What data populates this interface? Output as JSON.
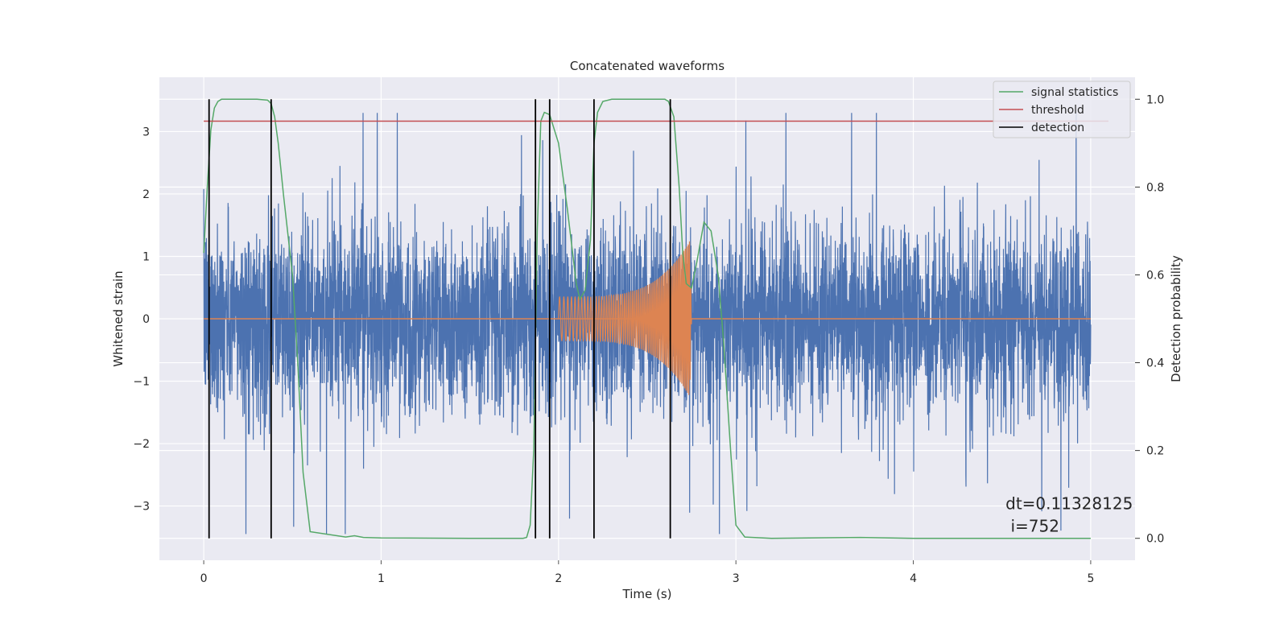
{
  "chart_data": {
    "type": "line",
    "title": "Concatenated waveforms",
    "xlabel": "Time (s)",
    "ylabel": "Whitened strain",
    "y2label": "Detection probability",
    "xlim": [
      -0.25,
      5.25
    ],
    "ylim": [
      -3.87,
      3.87
    ],
    "y2lim": [
      -0.05,
      1.05
    ],
    "xticks": [
      0,
      1,
      2,
      3,
      4,
      5
    ],
    "xtick_labels": [
      "0",
      "1",
      "2",
      "3",
      "4",
      "5"
    ],
    "yticks": [
      -3,
      -2,
      -1,
      0,
      1,
      2,
      3
    ],
    "ytick_labels": [
      "−3",
      "−2",
      "−1",
      "0",
      "1",
      "2",
      "3"
    ],
    "y2ticks": [
      0.0,
      0.2,
      0.4,
      0.6,
      0.8,
      1.0
    ],
    "y2tick_labels": [
      "0.0",
      "0.2",
      "0.4",
      "0.6",
      "0.8",
      "1.0"
    ],
    "grid": true,
    "legend_position": "top-right",
    "legend": [
      "signal statistics",
      "threshold",
      "detection"
    ],
    "colors": {
      "noise": "#4c72b0",
      "injection": "#dd8452",
      "signal_statistics": "#55a868",
      "threshold": "#c44e52",
      "detection": "#000000",
      "plot_bg": "#eaeaf2",
      "grid": "#ffffff"
    },
    "series": [
      {
        "name": "whitened strain",
        "axis": "left",
        "description": "noisy strain, ~N(0,0.75) with spikes up to about ±3.3",
        "t_range": [
          0,
          5
        ]
      },
      {
        "name": "injected waveform",
        "axis": "left",
        "t_range": [
          2.0,
          2.75
        ],
        "envelope_start": 0.35,
        "envelope_peak": 1.25,
        "peak_time": 2.74
      },
      {
        "name": "signal statistics",
        "axis": "right",
        "x": [
          0.0,
          0.02,
          0.04,
          0.06,
          0.08,
          0.1,
          0.2,
          0.3,
          0.36,
          0.38,
          0.4,
          0.42,
          0.45,
          0.5,
          0.53,
          0.56,
          0.6,
          0.8,
          0.85,
          0.9,
          1.0,
          1.5,
          1.8,
          1.82,
          1.84,
          1.86,
          1.88,
          1.9,
          1.92,
          1.95,
          2.0,
          2.05,
          2.1,
          2.12,
          2.15,
          2.18,
          2.2,
          2.22,
          2.25,
          2.3,
          2.6,
          2.62,
          2.65,
          2.68,
          2.7,
          2.72,
          2.75,
          2.78,
          2.82,
          2.86,
          2.9,
          2.93,
          2.97,
          3.0,
          3.05,
          3.2,
          3.7,
          4.0,
          5.0
        ],
        "y": [
          0.65,
          0.8,
          0.93,
          0.98,
          0.995,
          1.0,
          1.0,
          1.0,
          0.998,
          0.99,
          0.96,
          0.9,
          0.78,
          0.6,
          0.4,
          0.15,
          0.015,
          0.003,
          0.006,
          0.002,
          0.001,
          0.0,
          0.0,
          0.002,
          0.03,
          0.2,
          0.7,
          0.95,
          0.97,
          0.965,
          0.9,
          0.75,
          0.58,
          0.545,
          0.565,
          0.68,
          0.9,
          0.97,
          0.995,
          1.0,
          1.0,
          0.995,
          0.96,
          0.8,
          0.65,
          0.58,
          0.57,
          0.63,
          0.72,
          0.7,
          0.6,
          0.45,
          0.2,
          0.03,
          0.003,
          0.0,
          0.002,
          0.0,
          0.0
        ]
      },
      {
        "name": "threshold",
        "axis": "right",
        "x": [
          0,
          5.1
        ],
        "y": [
          0.95,
          0.95
        ]
      }
    ],
    "detections": [
      0.03,
      0.38,
      1.87,
      1.95,
      2.2,
      2.63
    ],
    "detection_range": [
      0,
      1
    ],
    "annotation": {
      "line1": "dt=0.11328125",
      "line2": " i=752",
      "x": 4.52,
      "y": -3.05
    }
  }
}
